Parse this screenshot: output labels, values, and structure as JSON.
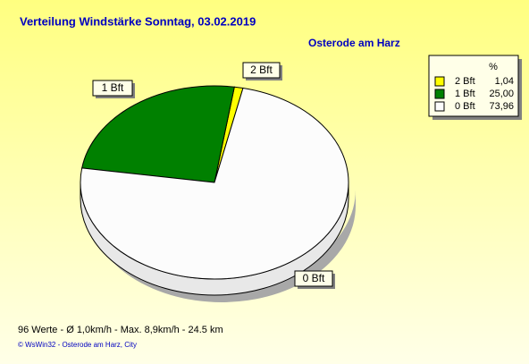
{
  "chart_data": {
    "type": "pie",
    "title": "Verteilung Windstärke  Sonntag, 03.02.2019",
    "subtitle": "Osterode am Harz",
    "legend_title": "%",
    "categories": [
      "2 Bft",
      "1 Bft",
      "0 Bft"
    ],
    "values": [
      1.04,
      25,
      73.96
    ],
    "value_labels": [
      "1,04",
      "25,00",
      "73,96"
    ],
    "colors": [
      "#ffff00",
      "#008000",
      "#fcfcfc"
    ],
    "legend": "top-right",
    "footer": "96 Werte   -   Ø 1,0km/h  -  Max. 8,9km/h   -   24.5 km",
    "credit": "© WsWin32  -  Osterode am Harz, City"
  }
}
